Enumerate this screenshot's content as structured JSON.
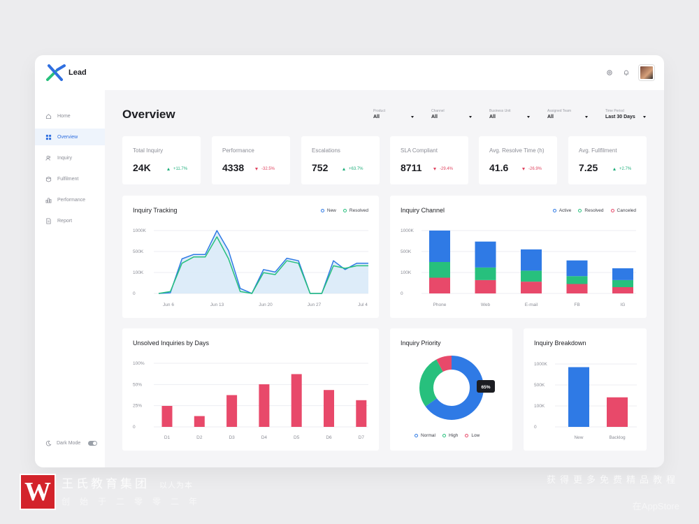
{
  "app": {
    "name": "Lead"
  },
  "sidebar": {
    "items": [
      {
        "label": "Home",
        "icon": "home-icon"
      },
      {
        "label": "Overview",
        "icon": "grid-icon",
        "active": true
      },
      {
        "label": "Inquiry",
        "icon": "users-icon"
      },
      {
        "label": "Fulfilment",
        "icon": "box-icon"
      },
      {
        "label": "Performance",
        "icon": "chart-icon"
      },
      {
        "label": "Report",
        "icon": "document-icon"
      }
    ],
    "dark_mode_label": "Dark Mode"
  },
  "page": {
    "title": "Overview"
  },
  "filters": [
    {
      "label": "Product",
      "value": "All"
    },
    {
      "label": "Channel",
      "value": "All"
    },
    {
      "label": "Business Unit",
      "value": "All"
    },
    {
      "label": "Assigned Team",
      "value": "All"
    },
    {
      "label": "Time Period",
      "value": "Last 30 Days"
    }
  ],
  "kpis": [
    {
      "label": "Total Inquiry",
      "value": "24K",
      "delta": "+11.7%",
      "direction": "up"
    },
    {
      "label": "Performance",
      "value": "4338",
      "delta": "-32.5%",
      "direction": "down"
    },
    {
      "label": "Escalations",
      "value": "752",
      "delta": "+63.7%",
      "direction": "up"
    },
    {
      "label": "SLA Compliant",
      "value": "8711",
      "delta": "-29.4%",
      "direction": "down"
    },
    {
      "label": "Avg. Resolve Time (h)",
      "value": "41.6",
      "delta": "-26.9%",
      "direction": "down"
    },
    {
      "label": "Avg. Fullfilment",
      "value": "7.25",
      "delta": "+2.7%",
      "direction": "up"
    }
  ],
  "colors": {
    "blue": "#2f7ae5",
    "green": "#27c07d",
    "red": "#e8496a",
    "accent": "#2f6fe0"
  },
  "chart_data": [
    {
      "id": "inquiry-tracking",
      "type": "line",
      "title": "Inquiry Tracking",
      "y_ticks": [
        "1000K",
        "500K",
        "100K",
        "0"
      ],
      "x_ticks": [
        "Jun 6",
        "Jun 13",
        "Jun 20",
        "Jun 27",
        "Jul 4"
      ],
      "series": [
        {
          "name": "New",
          "color": "#2f7ae5",
          "values": [
            0,
            1,
            55,
            62,
            62,
            100,
            68,
            8,
            0,
            38,
            34,
            56,
            52,
            0,
            0,
            52,
            38,
            48,
            48
          ]
        },
        {
          "name": "Resolved",
          "color": "#27c07d",
          "values": [
            0,
            3,
            48,
            58,
            58,
            90,
            55,
            3,
            0,
            33,
            30,
            52,
            48,
            0,
            0,
            44,
            40,
            44,
            44
          ]
        }
      ]
    },
    {
      "id": "inquiry-channel",
      "type": "bar",
      "title": "Inquiry Channel",
      "stacked": true,
      "y_ticks": [
        "1000K",
        "500K",
        "100K",
        "0"
      ],
      "categories": [
        "Phone",
        "Web",
        "E-mail",
        "FB",
        "IG"
      ],
      "series": [
        {
          "name": "Active",
          "color": "#2f7ae5",
          "values": [
            40,
            33,
            27,
            20,
            15
          ]
        },
        {
          "name": "Resolved",
          "color": "#27c07d",
          "values": [
            20,
            16,
            14,
            10,
            9
          ]
        },
        {
          "name": "Canceled",
          "color": "#e8496a",
          "values": [
            20,
            17,
            15,
            12,
            8
          ]
        }
      ]
    },
    {
      "id": "unsolved-by-days",
      "type": "bar",
      "title": "Unsolved Inquiries by Days",
      "y_ticks": [
        "100%",
        "50%",
        "25%",
        "0"
      ],
      "categories": [
        "D1",
        "D2",
        "D3",
        "D4",
        "D5",
        "D6",
        "D7"
      ],
      "series": [
        {
          "name": "",
          "color": "#e8496a",
          "values": [
            33,
            17,
            50,
            67,
            83,
            58,
            42
          ]
        }
      ]
    },
    {
      "id": "inquiry-priority",
      "type": "pie",
      "title": "Inquiry Priority",
      "callout": "65%",
      "slices": [
        {
          "name": "Normal",
          "value": 65,
          "color": "#2f7ae5"
        },
        {
          "name": "High",
          "value": 27,
          "color": "#27c07d"
        },
        {
          "name": "Low",
          "value": 8,
          "color": "#e8496a"
        }
      ]
    },
    {
      "id": "inquiry-breakdown",
      "type": "bar",
      "title": "Inquiry Breakdown",
      "y_ticks": [
        "1000K",
        "500K",
        "100K",
        "0"
      ],
      "categories": [
        "New",
        "Backlog"
      ],
      "series": [
        {
          "name": "",
          "values": [
            95,
            47
          ],
          "colors": [
            "#2f7ae5",
            "#e8496a"
          ]
        }
      ]
    }
  ],
  "watermark": {
    "logo_letter": "W",
    "org": "王氏教育集团",
    "slogan": "以人为本",
    "line2": "创始于二零零二年",
    "right_line1": "获得更多免费精品教程",
    "right_line2": "在AppStore"
  }
}
